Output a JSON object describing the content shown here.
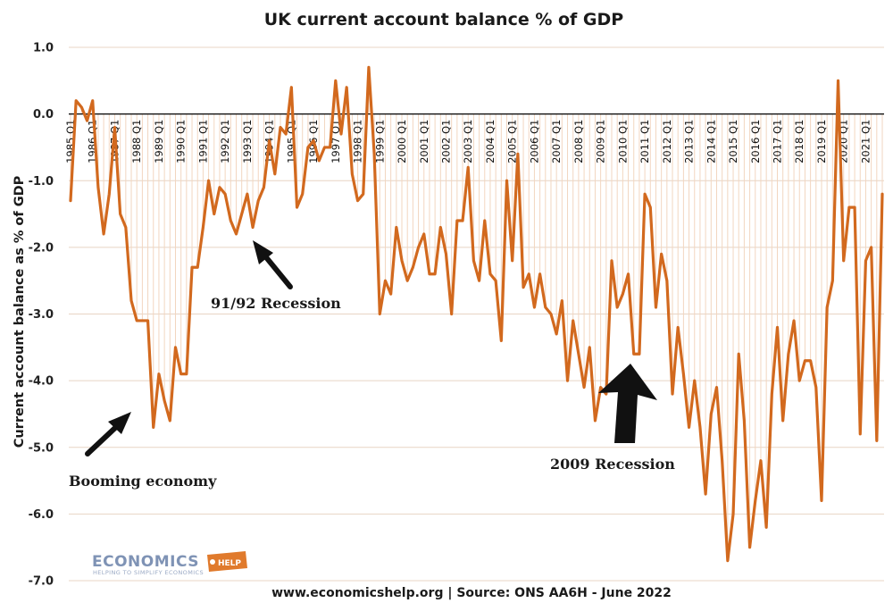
{
  "chart_data": {
    "type": "line",
    "title": "UK current account balance % of GDP",
    "ylabel": "Current account balance as % of GDP",
    "xlabel": "",
    "ylim": [
      -7.0,
      1.0
    ],
    "y_ticks": [
      "1.0",
      "0.0",
      "-1.0",
      "-2.0",
      "-3.0",
      "-4.0",
      "-5.0",
      "-6.0",
      "-7.0"
    ],
    "x_tick_labels": [
      "1985 Q1",
      "1986 Q1",
      "1987 Q1",
      "1988 Q1",
      "1989 Q1",
      "1990 Q1",
      "1991 Q1",
      "1992 Q1",
      "1993 Q1",
      "1994 Q1",
      "1995 Q1",
      "1996 Q1",
      "1997 Q1",
      "1998 Q1",
      "1999 Q1",
      "2000 Q1",
      "2001 Q1",
      "2002 Q1",
      "2003 Q1",
      "2004 Q1",
      "2005 Q1",
      "2006 Q1",
      "2007 Q1",
      "2008 Q1",
      "2009 Q1",
      "2010 Q1",
      "2011 Q1",
      "2012 Q1",
      "2013 Q1",
      "2014 Q1",
      "2015 Q1",
      "2016 Q1",
      "2017 Q1",
      "2018 Q1",
      "2019 Q1",
      "2020 Q1",
      "2021 Q1"
    ],
    "grid": true,
    "line_color": "#d2691e",
    "drop_line_color": "#f2d6c0",
    "series": [
      {
        "name": "",
        "start": "1985 Q1",
        "frequency": "quarterly",
        "values": [
          -1.3,
          0.2,
          0.1,
          -0.1,
          0.2,
          -1.1,
          -1.8,
          -1.2,
          -0.2,
          -1.5,
          -1.7,
          -2.8,
          -3.1,
          -3.1,
          -3.1,
          -4.7,
          -3.9,
          -4.3,
          -4.6,
          -3.5,
          -3.9,
          -3.9,
          -2.3,
          -2.3,
          -1.7,
          -1.0,
          -1.5,
          -1.1,
          -1.2,
          -1.6,
          -1.8,
          -1.5,
          -1.2,
          -1.7,
          -1.3,
          -1.1,
          -0.4,
          -0.9,
          -0.2,
          -0.3,
          0.4,
          -1.4,
          -1.2,
          -0.5,
          -0.4,
          -0.7,
          -0.5,
          -0.5,
          0.5,
          -0.3,
          0.4,
          -0.9,
          -1.3,
          -1.2,
          0.7,
          -0.6,
          -3.0,
          -2.5,
          -2.7,
          -1.7,
          -2.2,
          -2.5,
          -2.3,
          -2.0,
          -1.8,
          -2.4,
          -2.4,
          -1.7,
          -2.1,
          -3.0,
          -1.6,
          -1.6,
          -0.8,
          -2.2,
          -2.5,
          -1.6,
          -2.4,
          -2.5,
          -3.4,
          -1.0,
          -2.2,
          -0.6,
          -2.6,
          -2.4,
          -2.9,
          -2.4,
          -2.9,
          -3.0,
          -3.3,
          -2.8,
          -4.0,
          -3.1,
          -3.6,
          -4.1,
          -3.5,
          -4.6,
          -4.1,
          -4.2,
          -2.2,
          -2.9,
          -2.7,
          -2.4,
          -3.6,
          -3.6,
          -1.2,
          -1.4,
          -2.9,
          -2.1,
          -2.5,
          -4.2,
          -3.2,
          -3.9,
          -4.7,
          -4.0,
          -4.7,
          -5.7,
          -4.5,
          -4.1,
          -5.2,
          -6.7,
          -6.0,
          -3.6,
          -4.6,
          -6.5,
          -5.8,
          -5.2,
          -6.2,
          -4.2,
          -3.2,
          -4.6,
          -3.6,
          -3.1,
          -4.0,
          -3.7,
          -3.7,
          -4.1,
          -5.8,
          -2.9,
          -2.5,
          0.5,
          -2.2,
          -1.4,
          -1.4,
          -4.8,
          -2.2,
          -2.0,
          -4.9,
          -1.2
        ]
      }
    ],
    "annotations": [
      "91/92 Recession",
      "Booming economy",
      "2009 Recession"
    ]
  },
  "footer": "www.economicshelp.org | Source: ONS AA6H - June 2022",
  "logo": {
    "main": "ECONOMICS",
    "badge": "HELP",
    "tagline": "HELPING TO SIMPLIFY ECONOMICS"
  }
}
